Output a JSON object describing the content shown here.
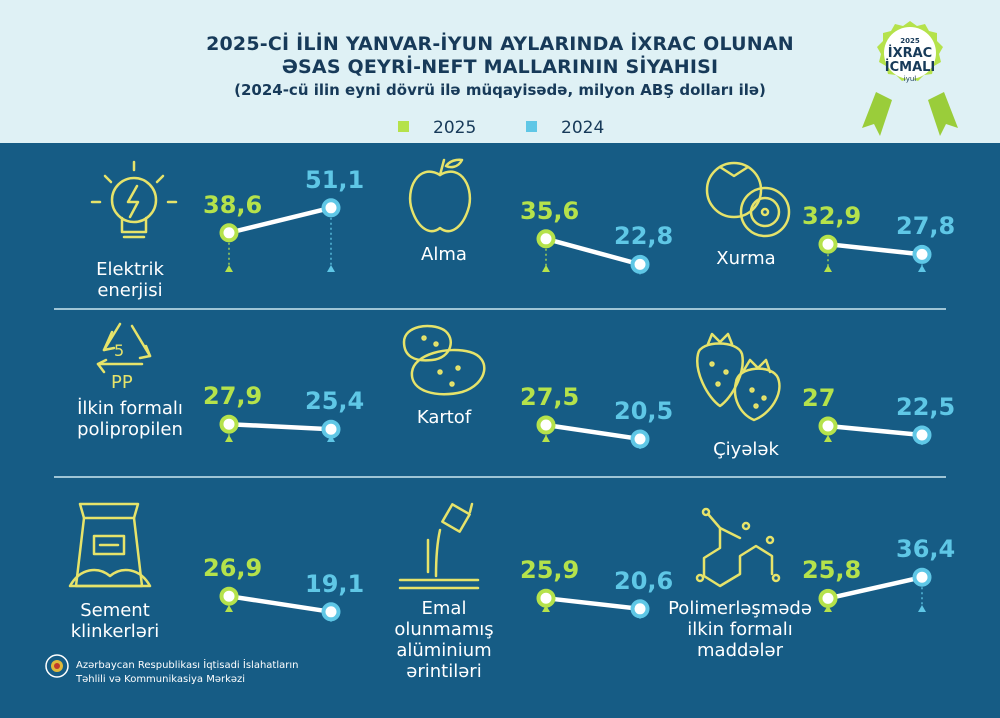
{
  "header": {
    "title_line1": "2025-Cİ İLİN YANVAR-İYUN AYLARINDA İXRAC OLUNAN",
    "title_line2": "ƏSAS QEYRİ-NEFT MALLARININ SİYAHISI",
    "subtitle": "(2024-cü ilin eyni dövrü ilə müqayisədə, milyon ABŞ dolları ilə)"
  },
  "badge": {
    "year": "2025",
    "line1": "İXRAC",
    "line2": "İCMALI",
    "month": "iyul"
  },
  "legend": {
    "label_2025": "2025",
    "label_2024": "2024"
  },
  "colors": {
    "accent_2025": "#b5e24b",
    "accent_2024": "#5fc7e6",
    "background": "#165c85",
    "header": "#dff1f5"
  },
  "footer": {
    "org_line1": "Azərbaycan Respublikası İqtisadi İslahatların",
    "org_line2": "Təhlili və Kommunikasiya Mərkəzi"
  },
  "chart_data": {
    "type": "line",
    "series": [
      {
        "name": "2025"
      },
      {
        "name": "2024"
      }
    ],
    "items": [
      {
        "name": "Elektrik enerjisi",
        "label_lines": [
          "Elektrik",
          "enerjisi"
        ],
        "icon": "lightbulb-icon",
        "v2025": 38.6,
        "v2024": 51.1,
        "l2025": "38,6",
        "l2024": "51,1"
      },
      {
        "name": "Alma",
        "label_lines": [
          "Alma"
        ],
        "icon": "apple-icon",
        "v2025": 35.6,
        "v2024": 22.8,
        "l2025": "35,6",
        "l2024": "22,8"
      },
      {
        "name": "Xurma",
        "label_lines": [
          "Xurma"
        ],
        "icon": "persimmon-icon",
        "v2025": 32.9,
        "v2024": 27.8,
        "l2025": "32,9",
        "l2024": "27,8"
      },
      {
        "name": "İlkin formalı polipropilen",
        "label_lines": [
          "İlkin formalı",
          "polipropilen"
        ],
        "icon": "recycle-pp-icon",
        "v2025": 27.9,
        "v2024": 25.4,
        "l2025": "27,9",
        "l2024": "25,4"
      },
      {
        "name": "Kartof",
        "label_lines": [
          "Kartof"
        ],
        "icon": "potato-icon",
        "v2025": 27.5,
        "v2024": 20.5,
        "l2025": "27,5",
        "l2024": "20,5"
      },
      {
        "name": "Çiyələk",
        "label_lines": [
          "Çiyələk"
        ],
        "icon": "strawberry-icon",
        "v2025": 27,
        "v2024": 22.5,
        "l2025": "27",
        "l2024": "22,5"
      },
      {
        "name": "Sement klinkerləri",
        "label_lines": [
          "Sement",
          "klinkerləri"
        ],
        "icon": "cement-bag-icon",
        "v2025": 26.9,
        "v2024": 19.1,
        "l2025": "26,9",
        "l2024": "19,1"
      },
      {
        "name": "Emal olunmamış alüminium ərintiləri",
        "label_lines": [
          "Emal",
          "olunmamış",
          "alüminium",
          "ərintiləri"
        ],
        "icon": "molten-metal-icon",
        "v2025": 25.9,
        "v2024": 20.6,
        "l2025": "25,9",
        "l2024": "20,6"
      },
      {
        "name": "Polimerləşmədə ilkin formalı maddələr",
        "label_lines": [
          "Polimerləşmədə",
          "ilkin formalı",
          "maddələr"
        ],
        "icon": "molecule-icon",
        "v2025": 25.8,
        "v2024": 36.4,
        "l2025": "25,8",
        "l2024": "36,4"
      }
    ]
  }
}
